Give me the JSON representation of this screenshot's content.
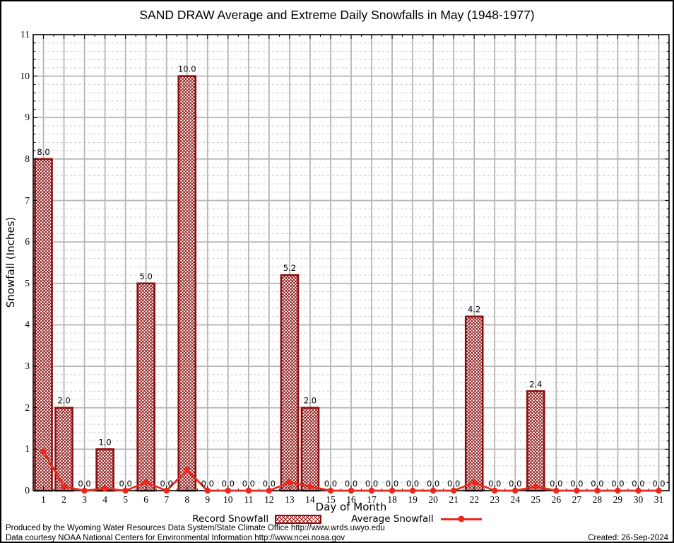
{
  "title": "SAND DRAW Average and Extreme Daily Snowfalls in May (1948-1977)",
  "y_axis": {
    "label": "Snowfall (Inches)"
  },
  "x_axis": {
    "label": "Day of Month"
  },
  "legend": {
    "record": "Record Snowfall",
    "average": "Average Snowfall"
  },
  "footer": {
    "line1": "Produced by the Wyoming Water Resources Data System/State Climate Office http://www.wrds.uwyo.edu",
    "line2": "Data courtesy NOAA National Centers for Environmental Information http://www.ncei.noaa.gov",
    "created": "Created: 26-Sep-2024"
  },
  "chart_data": {
    "type": "bar",
    "title": "SAND DRAW Average and Extreme Daily Snowfalls in May (1948-1977)",
    "xlabel": "Day of Month",
    "ylabel": "Snowfall (Inches)",
    "ylim": [
      0,
      11
    ],
    "y_major_step": 1,
    "y_minor_step": 0.2,
    "grid": {
      "major": true,
      "minor": true,
      "major_color": "#b6b6b6",
      "minor_color": "#c8c8c8"
    },
    "legend_position": "bottom",
    "categories": [
      1,
      2,
      3,
      4,
      5,
      6,
      7,
      8,
      9,
      10,
      11,
      12,
      13,
      14,
      15,
      16,
      17,
      18,
      19,
      20,
      21,
      22,
      23,
      24,
      25,
      26,
      27,
      28,
      29,
      30,
      31
    ],
    "series": [
      {
        "name": "Record Snowfall",
        "type": "bar",
        "color": "#8b0f0f",
        "values": [
          8.0,
          2.0,
          0.0,
          1.0,
          0.0,
          5.0,
          0.0,
          10.0,
          0.0,
          0.0,
          0.0,
          0.0,
          5.2,
          2.0,
          0.0,
          0.0,
          0.0,
          0.0,
          0.0,
          0.0,
          0.0,
          4.2,
          0.0,
          0.0,
          2.4,
          0.0,
          0.0,
          0.0,
          0.0,
          0.0,
          0.0
        ],
        "labels": [
          "8.0",
          "2.0",
          "0.0",
          "1.0",
          "0.0",
          "5.0",
          "0.0",
          "10.0",
          "0.0",
          "0.0",
          "0.0",
          "0.0",
          "5.2",
          "2.0",
          "0.0",
          "0.0",
          "0.0",
          "0.0",
          "0.0",
          "0.0",
          "0.0",
          "4.2",
          "0.0",
          "0.0",
          "2.4",
          "0.0",
          "0.0",
          "0.0",
          "0.0",
          "0.0",
          "0.0"
        ]
      },
      {
        "name": "Average Snowfall",
        "type": "line",
        "color": "#e8291c",
        "values": [
          0.95,
          0.1,
          0,
          0.05,
          0,
          0.2,
          0,
          0.5,
          0,
          0,
          0,
          0,
          0.2,
          0.1,
          0,
          0,
          0,
          0,
          0,
          0,
          0,
          0.2,
          0,
          0,
          0.1,
          0,
          0,
          0,
          0,
          0,
          0
        ]
      }
    ]
  }
}
